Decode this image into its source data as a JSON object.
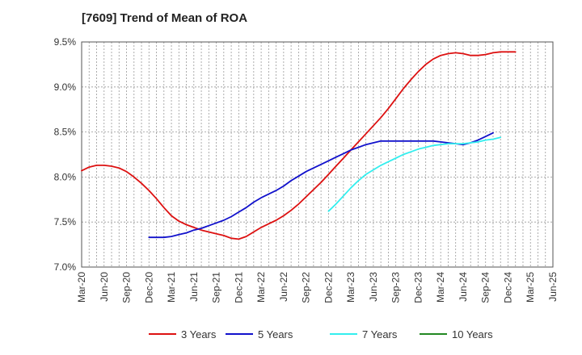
{
  "chart_data": {
    "type": "line",
    "title": "[7609]  Trend of Mean of ROA",
    "xlabel": "",
    "ylabel": "",
    "ylim": [
      7.0,
      9.5
    ],
    "yticks": [
      "7.0%",
      "7.5%",
      "8.0%",
      "8.5%",
      "9.0%",
      "9.5%"
    ],
    "ytick_values": [
      7.0,
      7.5,
      8.0,
      8.5,
      9.0,
      9.5
    ],
    "x_labels": [
      "Mar-20",
      "Jun-20",
      "Sep-20",
      "Dec-20",
      "Mar-21",
      "Jun-21",
      "Sep-21",
      "Dec-21",
      "Mar-22",
      "Jun-22",
      "Sep-22",
      "Dec-22",
      "Mar-23",
      "Jun-23",
      "Sep-23",
      "Dec-23",
      "Mar-24",
      "Jun-24",
      "Sep-24",
      "Dec-24",
      "Mar-25",
      "Jun-25"
    ],
    "grid": true,
    "legend_position": "bottom",
    "series": [
      {
        "name": "3 Years",
        "color": "#dd1111",
        "start_index": 0,
        "values": [
          8.07,
          8.11,
          8.13,
          8.13,
          8.12,
          8.1,
          8.06,
          8.0,
          7.93,
          7.85,
          7.76,
          7.66,
          7.57,
          7.51,
          7.47,
          7.44,
          7.41,
          7.39,
          7.37,
          7.35,
          7.32,
          7.31,
          7.34,
          7.39,
          7.44,
          7.48,
          7.52,
          7.57,
          7.63,
          7.7,
          7.78,
          7.86,
          7.94,
          8.03,
          8.12,
          8.21,
          8.3,
          8.39,
          8.48,
          8.57,
          8.66,
          8.76,
          8.87,
          8.98,
          9.08,
          9.17,
          9.25,
          9.31,
          9.35,
          9.37,
          9.38,
          9.37,
          9.35,
          9.35,
          9.36,
          9.38,
          9.39,
          9.39,
          9.39
        ]
      },
      {
        "name": "5 Years",
        "color": "#1111cc",
        "start_index": 9,
        "values": [
          7.33,
          7.33,
          7.33,
          7.34,
          7.36,
          7.38,
          7.41,
          7.43,
          7.46,
          7.49,
          7.52,
          7.56,
          7.61,
          7.66,
          7.72,
          7.77,
          7.81,
          7.85,
          7.9,
          7.96,
          8.01,
          8.06,
          8.1,
          8.14,
          8.18,
          8.22,
          8.26,
          8.3,
          8.33,
          8.36,
          8.38,
          8.4,
          8.4,
          8.4,
          8.4,
          8.4,
          8.4,
          8.4,
          8.4,
          8.39,
          8.38,
          8.37,
          8.36,
          8.38,
          8.41,
          8.45,
          8.49
        ]
      },
      {
        "name": "7 Years",
        "color": "#33eeee",
        "start_index": 33,
        "values": [
          7.62,
          7.7,
          7.79,
          7.88,
          7.96,
          8.03,
          8.08,
          8.13,
          8.17,
          8.21,
          8.25,
          8.28,
          8.31,
          8.33,
          8.35,
          8.36,
          8.37,
          8.37,
          8.37,
          8.38,
          8.39,
          8.41,
          8.42,
          8.44
        ]
      },
      {
        "name": "10 Years",
        "color": "#228822",
        "start_index": 0,
        "values": []
      }
    ]
  }
}
